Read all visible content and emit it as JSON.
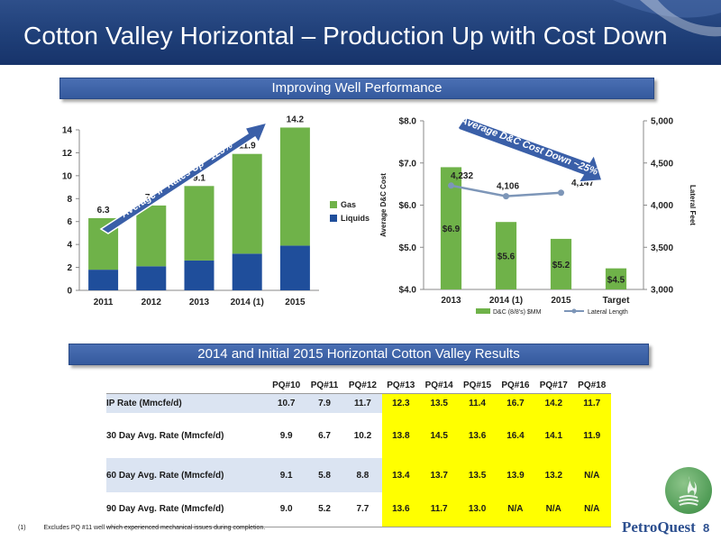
{
  "slide": {
    "title": "Cotton Valley Horizontal – Production Up with Cost Down",
    "section1": "Improving Well Performance",
    "section2": "2014 and Initial 2015 Horizontal Cotton Valley Results",
    "footnote_mark": "(1)",
    "footnote": "Excludes PQ #11 well which experienced mechanical issues during completion.",
    "logo_text": "PetroQuest",
    "page_number": "8",
    "colors": {
      "header": "#1f3f78",
      "gas": "#6fb249",
      "liquids": "#1f4e9b",
      "highlight": "#ffff00"
    }
  },
  "chart_data": [
    {
      "type": "bar",
      "stacked": true,
      "categories": [
        "2011",
        "2012",
        "2013",
        "2014 (1)",
        "2015"
      ],
      "series": [
        {
          "name": "Liquids",
          "color": "#1f4e9b",
          "values": [
            1.8,
            2.1,
            2.6,
            3.2,
            3.9
          ]
        },
        {
          "name": "Gas",
          "color": "#6fb249",
          "values": [
            4.5,
            5.3,
            6.5,
            8.7,
            10.3
          ]
        }
      ],
      "totals": [
        "6.3",
        "7.4",
        "9.1",
        "11.9",
        "14.2"
      ],
      "ylim": [
        0,
        14
      ],
      "yticks": [
        "0",
        "2",
        "4",
        "6",
        "8",
        "10",
        "12",
        "14"
      ],
      "annotation": "Average IP Rates Up ~125%",
      "legend_position": "right"
    },
    {
      "type": "bar+line",
      "categories": [
        "2013",
        "2014 (1)",
        "2015",
        "Target"
      ],
      "bars": {
        "name": "D&C (8/8's) $MM",
        "color": "#6fb249",
        "values": [
          6.9,
          5.6,
          5.2,
          4.5
        ],
        "labels": [
          "$6.9",
          "$5.6",
          "$5.2",
          "$4.5"
        ]
      },
      "line": {
        "name": "Lateral Length",
        "color": "#7d96b8",
        "values": [
          4232,
          4106,
          4147
        ],
        "labels": [
          "4,232",
          "4,106",
          "4,147"
        ]
      },
      "ylabel_left": "Average D&C Cost",
      "ylabel_right": "Lateral Feet",
      "ylim_left": [
        4.0,
        8.0
      ],
      "yticks_left": [
        "$4.0",
        "$5.0",
        "$6.0",
        "$7.0",
        "$8.0"
      ],
      "ylim_right": [
        3000,
        5000
      ],
      "yticks_right": [
        "3,000",
        "3,500",
        "4,000",
        "4,500",
        "5,000"
      ],
      "annotation": "Average D&C Cost Down ~25%",
      "legend_position": "bottom"
    }
  ],
  "table": {
    "columns": [
      "PQ#10",
      "PQ#11",
      "PQ#12",
      "PQ#13",
      "PQ#14",
      "PQ#15",
      "PQ#16",
      "PQ#17",
      "PQ#18"
    ],
    "rows": [
      {
        "label": "IP Rate (Mmcfe/d)",
        "values": [
          "10.7",
          "7.9",
          "11.7",
          "12.3",
          "13.5",
          "11.4",
          "16.7",
          "14.2",
          "11.7"
        ]
      },
      {
        "label": "30 Day Avg. Rate (Mmcfe/d)",
        "values": [
          "9.9",
          "6.7",
          "10.2",
          "13.8",
          "14.5",
          "13.6",
          "16.4",
          "14.1",
          "11.9"
        ]
      },
      {
        "label": "60 Day Avg. Rate (Mmcfe/d)",
        "values": [
          "9.1",
          "5.8",
          "8.8",
          "13.4",
          "13.7",
          "13.5",
          "13.9",
          "13.2",
          "N/A"
        ]
      },
      {
        "label": "90 Day Avg. Rate (Mmcfe/d)",
        "values": [
          "9.0",
          "5.2",
          "7.7",
          "13.6",
          "11.7",
          "13.0",
          "N/A",
          "N/A",
          "N/A"
        ]
      }
    ]
  }
}
